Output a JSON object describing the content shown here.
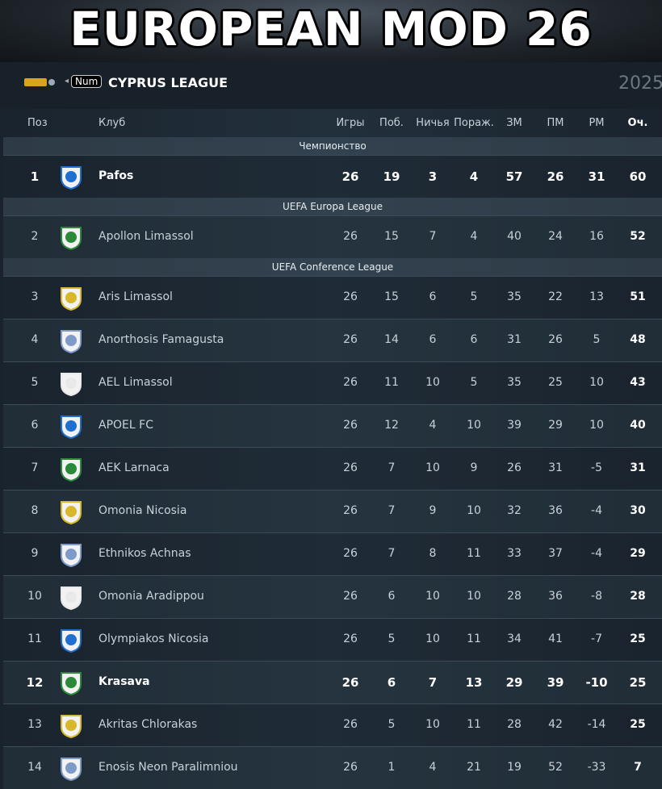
{
  "header": {
    "title": "EUROPEAN MOD 26",
    "key_hint": "Num",
    "league": "CYPRUS LEAGUE",
    "season": "2025"
  },
  "table": {
    "columns": [
      "Поз",
      "Клуб",
      "Игры",
      "Поб.",
      "Ничья",
      "Пораж.",
      "ЗМ",
      "ПМ",
      "РМ",
      "Оч."
    ],
    "sections": [
      {
        "title": "Чемпионство",
        "rows": [
          {
            "pos": 1,
            "club": "Pafos",
            "stats": [
              26,
              19,
              3,
              4,
              57,
              26,
              31,
              60
            ],
            "highlight": true
          }
        ]
      },
      {
        "title": "UEFA Europa League",
        "rows": [
          {
            "pos": 2,
            "club": "Apollon Limassol",
            "stats": [
              26,
              15,
              7,
              4,
              40,
              24,
              16,
              52
            ]
          }
        ]
      },
      {
        "title": "UEFA Conference League",
        "rows": [
          {
            "pos": 3,
            "club": "Aris Limassol",
            "stats": [
              26,
              15,
              6,
              5,
              35,
              22,
              13,
              51
            ]
          },
          {
            "pos": 4,
            "club": "Anorthosis Famagusta",
            "stats": [
              26,
              14,
              6,
              6,
              31,
              26,
              5,
              48
            ]
          },
          {
            "pos": 5,
            "club": "AEL Limassol",
            "stats": [
              26,
              11,
              10,
              5,
              35,
              25,
              10,
              43
            ]
          },
          {
            "pos": 6,
            "club": "APOEL FC",
            "stats": [
              26,
              12,
              4,
              10,
              39,
              29,
              10,
              40
            ]
          },
          {
            "pos": 7,
            "club": "AEK Larnaca",
            "stats": [
              26,
              7,
              10,
              9,
              26,
              31,
              -5,
              31
            ]
          },
          {
            "pos": 8,
            "club": "Omonia Nicosia",
            "stats": [
              26,
              7,
              9,
              10,
              32,
              36,
              -4,
              30
            ]
          },
          {
            "pos": 9,
            "club": "Ethnikos Achnas",
            "stats": [
              26,
              7,
              8,
              11,
              33,
              37,
              -4,
              29
            ]
          },
          {
            "pos": 10,
            "club": "Omonia Aradippou",
            "stats": [
              26,
              6,
              10,
              10,
              28,
              36,
              -8,
              28
            ]
          },
          {
            "pos": 11,
            "club": "Olympiakos Nicosia",
            "stats": [
              26,
              5,
              10,
              11,
              34,
              41,
              -7,
              25
            ]
          },
          {
            "pos": 12,
            "club": "Krasava",
            "stats": [
              26,
              6,
              7,
              13,
              29,
              39,
              -10,
              25
            ],
            "highlight": true
          },
          {
            "pos": 13,
            "club": "Akritas Chlorakas",
            "stats": [
              26,
              5,
              10,
              11,
              28,
              42,
              -14,
              25
            ]
          },
          {
            "pos": 14,
            "club": "Enosis Neon Paralimniou",
            "stats": [
              26,
              1,
              4,
              21,
              19,
              52,
              -33,
              7
            ]
          }
        ]
      }
    ]
  }
}
